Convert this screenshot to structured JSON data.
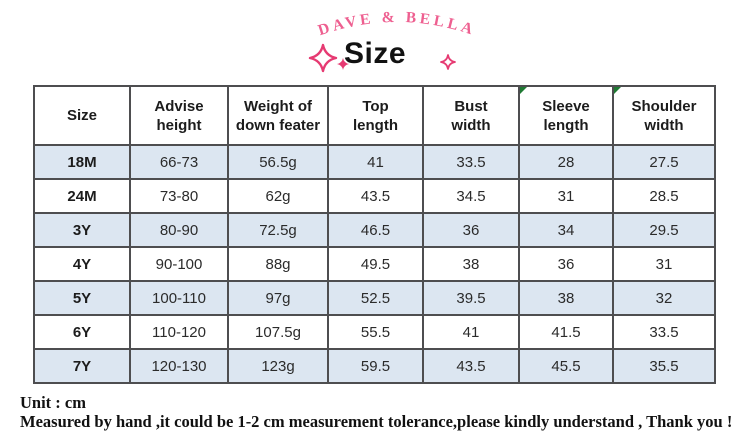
{
  "brand": {
    "name": "DAVE & BELLA"
  },
  "title": "Size",
  "table": {
    "columns": [
      {
        "lines": [
          "Size"
        ]
      },
      {
        "lines": [
          "Advise",
          "height"
        ]
      },
      {
        "lines": [
          "Weight of",
          "down feater"
        ]
      },
      {
        "lines": [
          "Top",
          "length"
        ]
      },
      {
        "lines": [
          "Bust",
          "width"
        ]
      },
      {
        "lines": [
          "Sleeve",
          "length"
        ]
      },
      {
        "lines": [
          "Shoulder",
          "width"
        ]
      }
    ],
    "comment_marker_columns": [
      5,
      6
    ],
    "rows": [
      [
        "18M",
        "66-73",
        "56.5g",
        "41",
        "33.5",
        "28",
        "27.5"
      ],
      [
        "24M",
        "73-80",
        "62g",
        "43.5",
        "34.5",
        "31",
        "28.5"
      ],
      [
        "3Y",
        "80-90",
        "72.5g",
        "46.5",
        "36",
        "34",
        "29.5"
      ],
      [
        "4Y",
        "90-100",
        "88g",
        "49.5",
        "38",
        "36",
        "31"
      ],
      [
        "5Y",
        "100-110",
        "97g",
        "52.5",
        "39.5",
        "38",
        "32"
      ],
      [
        "6Y",
        "110-120",
        "107.5g",
        "55.5",
        "41",
        "41.5",
        "33.5"
      ],
      [
        "7Y",
        "120-130",
        "123g",
        "59.5",
        "43.5",
        "45.5",
        "35.5"
      ]
    ]
  },
  "notes": {
    "unit": "Unit : cm",
    "tolerance": "Measured by hand ,it could be 1-2 cm measurement tolerance,please kindly understand , Thank you !"
  },
  "colors": {
    "brand_pink": "#ee5f90",
    "sparkle_pink": "#e63a72",
    "row_band_blue": "#dce6f1",
    "marker_green": "#1f7a33",
    "border_gray": "#4e4e50"
  }
}
